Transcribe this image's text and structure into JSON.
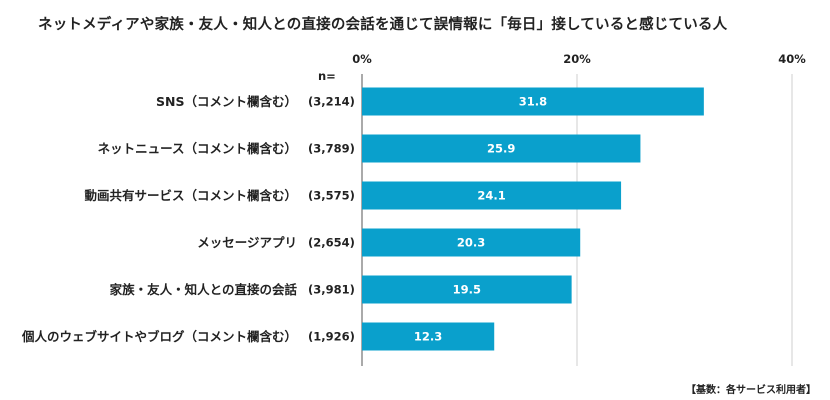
{
  "chart_data": {
    "type": "bar",
    "orientation": "horizontal",
    "title": "ネットメディアや家族・友人・知人との直接の会話を通じて誤情報に「毎日」接していると感じている人",
    "categories": [
      "SNS（コメント欄含む）",
      "ネットニュース（コメント欄含む）",
      "動画共有サービス（コメント欄含む）",
      "メッセージアプリ",
      "家族・友人・知人との直接の会話",
      "個人のウェブサイトやブログ（コメント欄含む）"
    ],
    "sample_sizes": [
      "(3,214)",
      "(3,789)",
      "(3,575)",
      "(2,654)",
      "(3,981)",
      "(1,926)"
    ],
    "sample_size_header": "n=",
    "values": [
      31.8,
      25.9,
      24.1,
      20.3,
      19.5,
      12.3
    ],
    "value_labels": [
      "31.8",
      "25.9",
      "24.1",
      "20.3",
      "19.5",
      "12.3"
    ],
    "xlim": [
      0,
      40
    ],
    "ticks": [
      0,
      20,
      40
    ],
    "tick_labels": [
      "0%",
      "20%",
      "40%"
    ],
    "grid": true,
    "bar_color": "#0aa0cc",
    "footnote": "【基数：各サービス利用者】"
  }
}
